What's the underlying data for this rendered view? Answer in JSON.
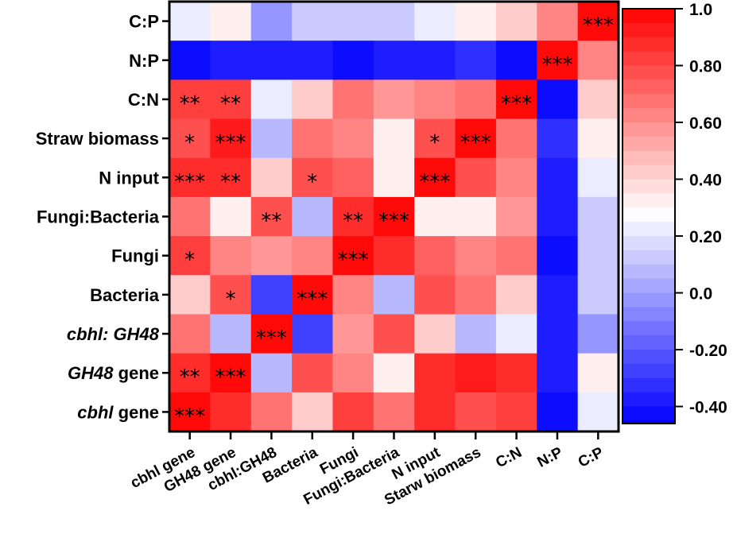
{
  "chart_data": {
    "type": "heatmap",
    "title": "",
    "xlabel": "",
    "ylabel": "",
    "x_categories": [
      "cbhl gene",
      "GH48 gene",
      "cbhl:GH48",
      "Bacteria",
      "Fungi",
      "Fungi:Bacteria",
      "N input",
      "Starw biomass",
      "C:N",
      "N:P",
      "C:P"
    ],
    "y_categories": [
      {
        "parts": [
          {
            "text": "C:P",
            "italic": false
          }
        ]
      },
      {
        "parts": [
          {
            "text": "N:P",
            "italic": false
          }
        ]
      },
      {
        "parts": [
          {
            "text": "C:N",
            "italic": false
          }
        ]
      },
      {
        "parts": [
          {
            "text": "Straw biomass",
            "italic": false
          }
        ]
      },
      {
        "parts": [
          {
            "text": "N input",
            "italic": false
          }
        ]
      },
      {
        "parts": [
          {
            "text": "Fungi:Bacteria",
            "italic": false
          }
        ]
      },
      {
        "parts": [
          {
            "text": "Fungi",
            "italic": false
          }
        ]
      },
      {
        "parts": [
          {
            "text": "Bacteria",
            "italic": false
          }
        ]
      },
      {
        "parts": [
          {
            "text": "cbhl: GH48",
            "italic": true
          }
        ]
      },
      {
        "parts": [
          {
            "text": "GH48",
            "italic": true
          },
          {
            "text": " gene",
            "italic": false
          }
        ]
      },
      {
        "parts": [
          {
            "text": "cbhl",
            "italic": true
          },
          {
            "text": " gene",
            "italic": false
          }
        ]
      }
    ],
    "values": [
      [
        0.25,
        0.35,
        0.0,
        0.12,
        0.12,
        0.12,
        0.25,
        0.35,
        0.45,
        0.63,
        1.0
      ],
      [
        -0.45,
        -0.4,
        -0.35,
        -0.35,
        -0.45,
        -0.38,
        -0.38,
        -0.3,
        -0.45,
        1.0,
        0.63
      ],
      [
        0.83,
        0.83,
        0.25,
        0.4,
        0.68,
        0.55,
        0.63,
        0.68,
        1.0,
        -0.45,
        0.45
      ],
      [
        0.78,
        0.93,
        0.08,
        0.68,
        0.63,
        0.3,
        0.78,
        1.0,
        0.68,
        -0.3,
        0.35
      ],
      [
        0.88,
        0.88,
        0.4,
        0.78,
        0.73,
        0.35,
        1.0,
        0.78,
        0.63,
        -0.38,
        0.25
      ],
      [
        0.68,
        0.3,
        0.78,
        0.08,
        0.88,
        1.0,
        0.35,
        0.3,
        0.55,
        -0.38,
        0.12
      ],
      [
        0.83,
        0.63,
        0.55,
        0.63,
        1.0,
        0.88,
        0.73,
        0.63,
        0.68,
        -0.45,
        0.12
      ],
      [
        0.45,
        0.78,
        -0.25,
        1.0,
        0.63,
        0.08,
        0.78,
        0.68,
        0.4,
        -0.35,
        0.12
      ],
      [
        0.68,
        0.08,
        1.0,
        -0.25,
        0.55,
        0.78,
        0.4,
        0.08,
        0.25,
        -0.35,
        0.0
      ],
      [
        0.88,
        1.0,
        0.08,
        0.78,
        0.63,
        0.3,
        0.88,
        0.93,
        0.88,
        -0.4,
        0.35
      ],
      [
        1.0,
        0.88,
        0.68,
        0.45,
        0.83,
        0.68,
        0.88,
        0.78,
        0.83,
        -0.45,
        0.25
      ]
    ],
    "significance": [
      [
        "",
        "",
        "",
        "",
        "",
        "",
        "",
        "",
        "",
        "",
        "***"
      ],
      [
        "",
        "",
        "",
        "",
        "",
        "",
        "",
        "",
        "",
        "***",
        ""
      ],
      [
        "**",
        "**",
        "",
        "",
        "",
        "",
        "",
        "",
        "***",
        "",
        ""
      ],
      [
        "*",
        "***",
        "",
        "",
        "",
        "",
        "*",
        "***",
        "",
        "",
        ""
      ],
      [
        "***",
        "**",
        "",
        "*",
        "",
        "",
        "***",
        "",
        "",
        "",
        ""
      ],
      [
        "",
        "",
        "**",
        "",
        "**",
        "***",
        "",
        "",
        "",
        "",
        ""
      ],
      [
        "*",
        "",
        "",
        "",
        "***",
        "",
        "",
        "",
        "",
        "",
        ""
      ],
      [
        "",
        "*",
        "",
        "***",
        "",
        "",
        "",
        "",
        "",
        "",
        ""
      ],
      [
        "",
        "",
        "***",
        "",
        "",
        "",
        "",
        "",
        "",
        "",
        ""
      ],
      [
        "**",
        "***",
        "",
        "",
        "",
        "",
        "",
        "",
        "",
        "",
        ""
      ],
      [
        "***",
        "",
        "",
        "",
        "",
        "",
        "",
        "",
        "",
        "",
        ""
      ]
    ],
    "colorbar": {
      "range": [
        -0.46,
        1.0
      ],
      "ticks": [
        {
          "value": 1.0,
          "label": "1.0"
        },
        {
          "value": 0.8,
          "label": "0.80"
        },
        {
          "value": 0.6,
          "label": "0.60"
        },
        {
          "value": 0.4,
          "label": "0.40"
        },
        {
          "value": 0.2,
          "label": "0.20"
        },
        {
          "value": 0.0,
          "label": "0.0"
        },
        {
          "value": -0.2,
          "label": "-0.20"
        },
        {
          "value": -0.4,
          "label": "-0.40"
        }
      ],
      "low_color": "#0000ff",
      "mid_color": "#ffffff",
      "high_color": "#ff0000",
      "mid_value": 0.28,
      "step": 0.05
    },
    "grid": false
  }
}
